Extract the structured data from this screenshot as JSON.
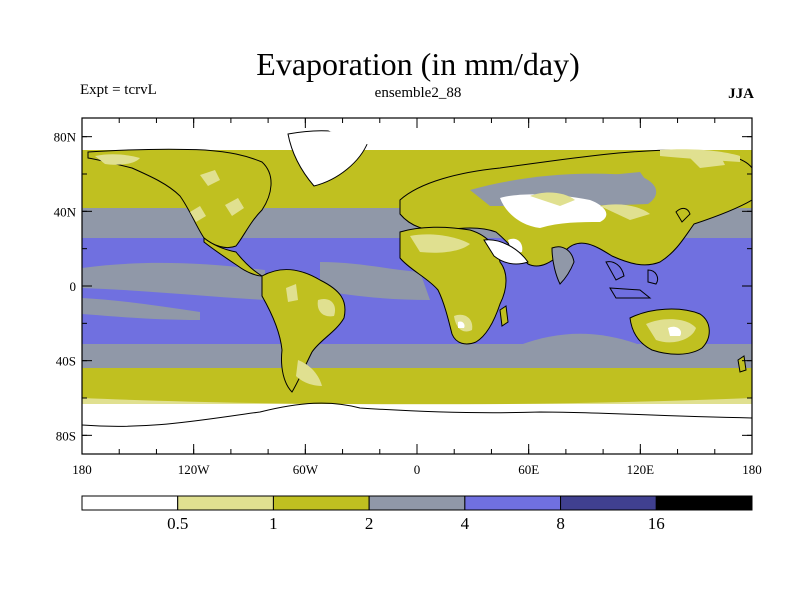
{
  "title": "Evaporation (in mm/day)",
  "subtitle_left": "Expt = tcrvL",
  "subtitle_center": "ensemble2_88",
  "subtitle_right": "JJA",
  "lon_ticks": [
    {
      "label": "180",
      "lon": -180
    },
    {
      "label": "120W",
      "lon": -120
    },
    {
      "label": "60W",
      "lon": -60
    },
    {
      "label": "0",
      "lon": 0
    },
    {
      "label": "60E",
      "lon": 60
    },
    {
      "label": "120E",
      "lon": 120
    },
    {
      "label": "180",
      "lon": 180
    }
  ],
  "lat_ticks": [
    {
      "label": "80N",
      "lat": 80
    },
    {
      "label": "40N",
      "lat": 40
    },
    {
      "label": "0",
      "lat": 0
    },
    {
      "label": "40S",
      "lat": -40
    },
    {
      "label": "80S",
      "lat": -80
    }
  ],
  "colorbar": {
    "colors": [
      "#ffffff",
      "#e0e090",
      "#c0c020",
      "#9098a8",
      "#7070e0",
      "#404090",
      "#000000"
    ],
    "labels": [
      "0.5",
      "1",
      "2",
      "4",
      "8",
      "16"
    ]
  }
}
